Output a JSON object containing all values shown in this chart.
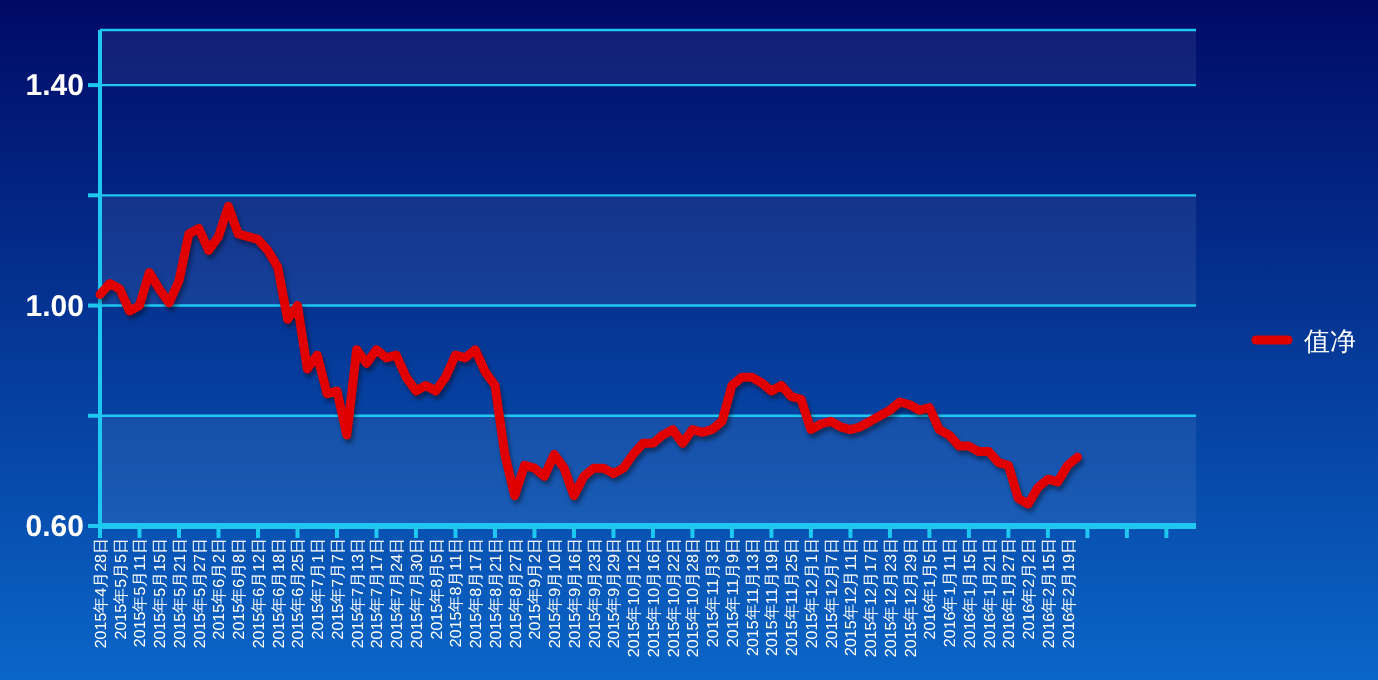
{
  "chart_data": {
    "type": "line",
    "categories": [
      "2015年4月28日",
      null,
      "2015年5月5日",
      null,
      "2015年5月11日",
      null,
      "2015年5月15日",
      null,
      "2015年5月21日",
      null,
      "2015年5月27日",
      null,
      "2015年6月2日",
      null,
      "2015年6月8日",
      null,
      "2015年6月12日",
      null,
      "2015年6月18日",
      null,
      "2015年6月25日",
      null,
      "2015年7月1日",
      null,
      "2015年7月7日",
      null,
      "2015年7月13日",
      null,
      "2015年7月17日",
      null,
      "2015年7月24日",
      null,
      "2015年7月30日",
      null,
      "2015年8月5日",
      null,
      "2015年8月11日",
      null,
      "2015年8月17日",
      null,
      "2015年8月21日",
      null,
      "2015年8月27日",
      null,
      "2015年9月2日",
      null,
      "2015年9月10日",
      null,
      "2015年9月16日",
      null,
      "2015年9月23日",
      null,
      "2015年9月29日",
      null,
      "2015年10月12日",
      null,
      "2015年10月16日",
      null,
      "2015年10月22日",
      null,
      "2015年10月28日",
      null,
      "2015年11月3日",
      null,
      "2015年11月9日",
      null,
      "2015年11月13日",
      null,
      "2015年11月19日",
      null,
      "2015年11月25日",
      null,
      "2015年12月1日",
      null,
      "2015年12月7日",
      null,
      "2015年12月11日",
      null,
      "2015年12月17日",
      null,
      "2015年12月23日",
      null,
      "2015年12月29日",
      null,
      "2016年1月5日",
      null,
      "2016年1月11日",
      null,
      "2016年1月15日",
      null,
      "2016年1月21日",
      null,
      "2016年1月27日",
      null,
      "2016年2月2日",
      null,
      "2016年2月15日",
      null,
      "2016年2月19日",
      null,
      null,
      null,
      null,
      null,
      null,
      null,
      null,
      null,
      null,
      null,
      null,
      null
    ],
    "series": [
      {
        "name": "值净",
        "color": "#e00000",
        "values": [
          1.02,
          1.04,
          1.03,
          0.99,
          1.0,
          1.06,
          1.03,
          1.005,
          1.045,
          1.13,
          1.14,
          1.1,
          1.125,
          1.18,
          1.13,
          1.125,
          1.12,
          1.1,
          1.07,
          0.975,
          1.0,
          0.885,
          0.91,
          0.84,
          0.845,
          0.765,
          0.92,
          0.895,
          0.92,
          0.905,
          0.91,
          0.87,
          0.845,
          0.855,
          0.845,
          0.87,
          0.91,
          0.905,
          0.92,
          0.88,
          0.855,
          0.73,
          0.655,
          0.71,
          0.705,
          0.69,
          0.73,
          0.705,
          0.655,
          0.69,
          0.705,
          0.705,
          0.695,
          0.705,
          0.73,
          0.75,
          0.75,
          0.765,
          0.775,
          0.75,
          0.775,
          0.77,
          0.775,
          0.79,
          0.855,
          0.87,
          0.87,
          0.86,
          0.845,
          0.855,
          0.835,
          0.83,
          0.775,
          0.785,
          0.79,
          0.78,
          0.775,
          0.78,
          0.79,
          0.8,
          0.81,
          0.825,
          0.82,
          0.81,
          0.815,
          0.775,
          0.765,
          0.745,
          0.745,
          0.735,
          0.735,
          0.715,
          0.71,
          0.65,
          0.64,
          0.67,
          0.685,
          0.68,
          0.71,
          0.725,
          null,
          null,
          null,
          null,
          null,
          null,
          null,
          null,
          null,
          null,
          null,
          null
        ]
      }
    ],
    "ylim": [
      0.6,
      1.5
    ],
    "yticks": [
      {
        "value": 0.6,
        "label": "0.60"
      },
      {
        "value": 0.8,
        "label": null
      },
      {
        "value": 1.0,
        "label": "1.00"
      },
      {
        "value": 1.2,
        "label": null
      },
      {
        "value": 1.4,
        "label": "1.40"
      }
    ],
    "grid": "y",
    "legend": "right"
  }
}
